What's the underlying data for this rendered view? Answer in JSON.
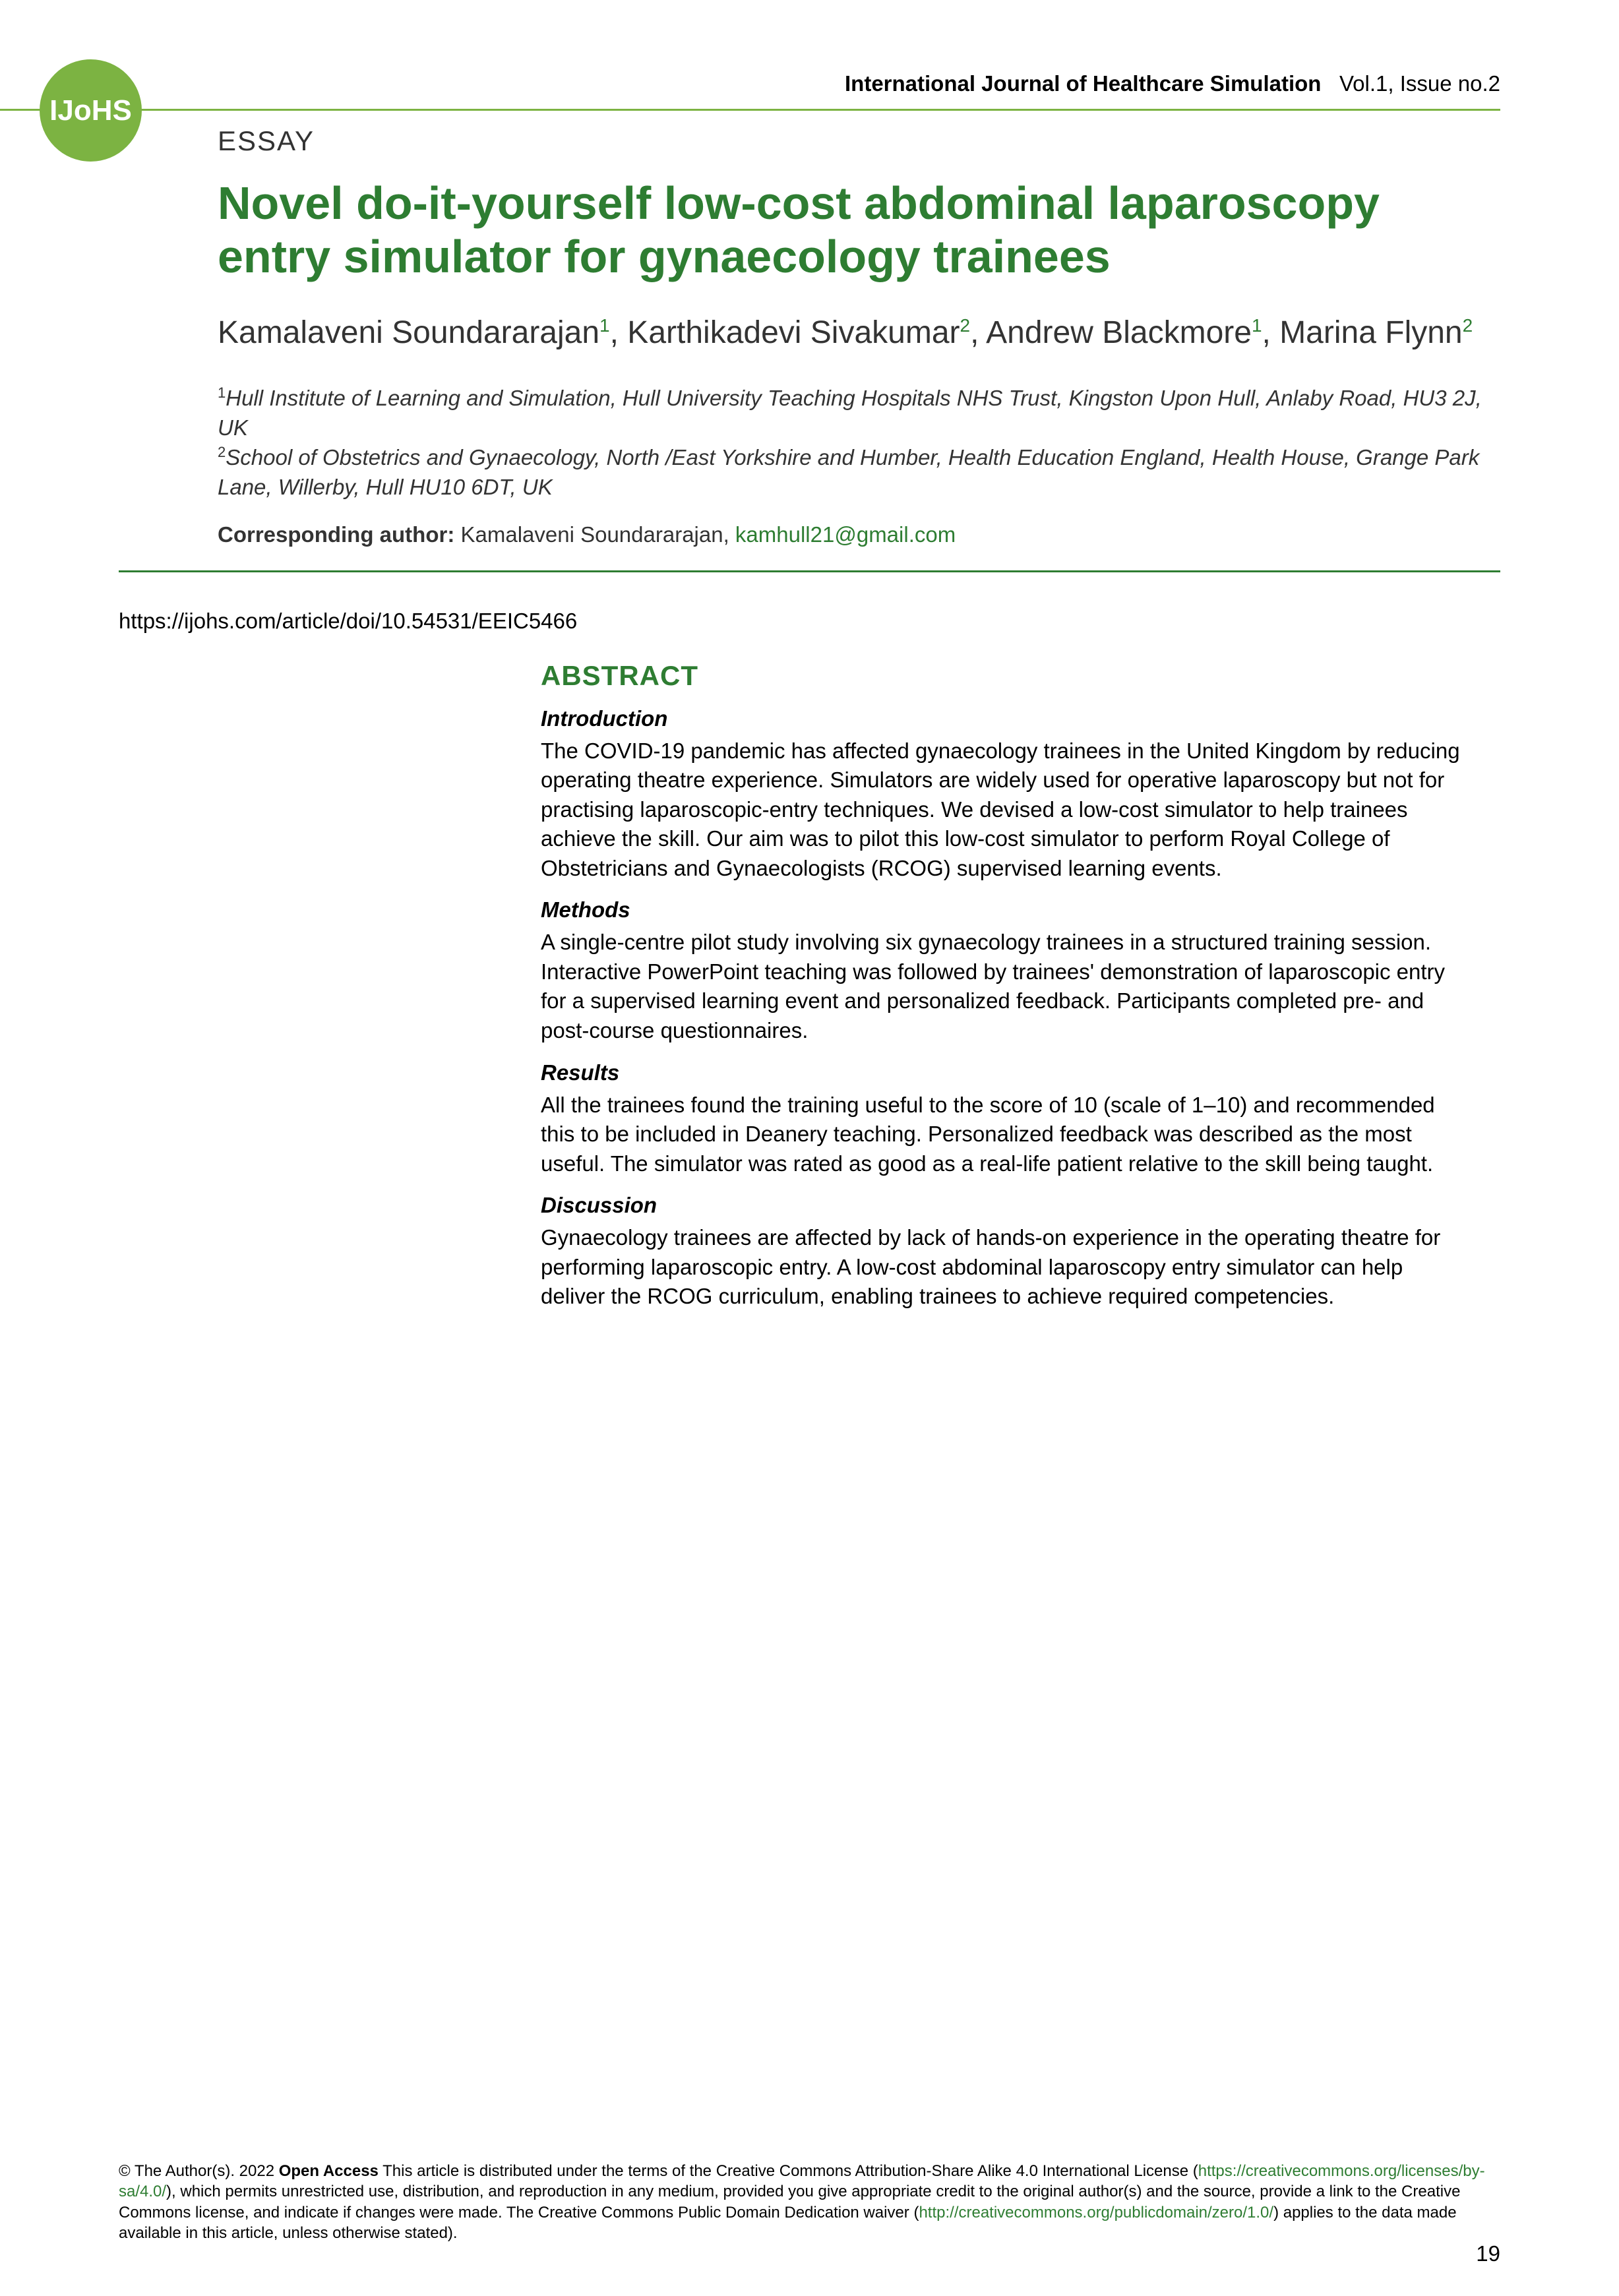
{
  "logo": {
    "text": "IJoHS"
  },
  "header": {
    "journal": "International Journal of Healthcare Simulation",
    "volume": "Vol.1, Issue no.2"
  },
  "article": {
    "type": "ESSAY",
    "title": "Novel do-it-yourself low-cost abdominal laparoscopy entry simulator for gynaecology trainees",
    "authors_html": "Kamalaveni Soundararajan<sup>1</sup>, Karthikadevi Sivakumar<sup>2</sup>, Andrew Blackmore<sup>1</sup>, Marina Flynn<sup>2</sup>",
    "affiliations": {
      "aff1": "Hull Institute of Learning and Simulation, Hull University Teaching Hospitals NHS Trust, Kingston Upon Hull, Anlaby Road, HU3 2J, UK",
      "aff2": "School of Obstetrics and Gynaecology, North /East Yorkshire and Humber, Health Education England, Health House, Grange Park Lane, Willerby, Hull HU10 6DT, UK"
    },
    "corresponding": {
      "label": "Corresponding author:",
      "name": "Kamalaveni Soundararajan,",
      "email": "kamhull21@gmail.com"
    },
    "doi": "https://ijohs.com/article/doi/10.54531/EEIC5466"
  },
  "abstract": {
    "heading": "ABSTRACT",
    "sections": {
      "introduction": {
        "heading": "Introduction",
        "text": "The COVID-19 pandemic has affected gynaecology trainees in the United Kingdom by reducing operating theatre experience. Simulators are widely used for operative laparoscopy but not for practising laparoscopic-entry techniques. We devised a low-cost simulator to help trainees achieve the skill. Our aim was to pilot this low-cost simulator to perform Royal College of Obstetricians and Gynaecologists (RCOG) supervised learning events."
      },
      "methods": {
        "heading": "Methods",
        "text": "A single-centre pilot study involving six gynaecology trainees in a structured training session. Interactive PowerPoint teaching was followed by trainees' demonstration of laparoscopic entry for a supervised learning event and personalized feedback. Participants completed pre- and post-course questionnaires."
      },
      "results": {
        "heading": "Results",
        "text": "All the trainees found the training useful to the score of 10 (scale of 1–10) and recommended this to be included in Deanery teaching. Personalized feedback was described as the most useful. The simulator was rated as good as a real-life patient relative to the skill being taught."
      },
      "discussion": {
        "heading": "Discussion",
        "text": "Gynaecology trainees are affected by lack of hands-on experience in the operating theatre for performing laparoscopic entry. A low-cost abdominal laparoscopy entry simulator can help deliver the RCOG curriculum, enabling trainees to achieve required competencies."
      }
    }
  },
  "footer": {
    "copyright": "© The Author(s). 2022",
    "open_access": "Open Access",
    "license_text_1": "This article is distributed under the terms of the Creative Commons Attribution-Share Alike 4.0 International License (",
    "license_link_1": "https://creativecommons.org/licenses/by-sa/4.0/",
    "license_text_2": "), which permits unrestricted use, distribution, and reproduction in any medium, provided you give appropriate credit to the original author(s) and the source, provide a link to the Creative Commons license, and indicate if changes were made. The Creative Commons Public Domain Dedication waiver (",
    "license_link_2": "http://creativecommons.org/publicdomain/zero/1.0/",
    "license_text_3": ") applies to the data made available in this article, unless otherwise stated).",
    "page_number": "19"
  },
  "colors": {
    "accent_green": "#2e7d32",
    "logo_green": "#7cb342",
    "text_black": "#000000",
    "text_dark": "#333333",
    "background": "#ffffff"
  }
}
